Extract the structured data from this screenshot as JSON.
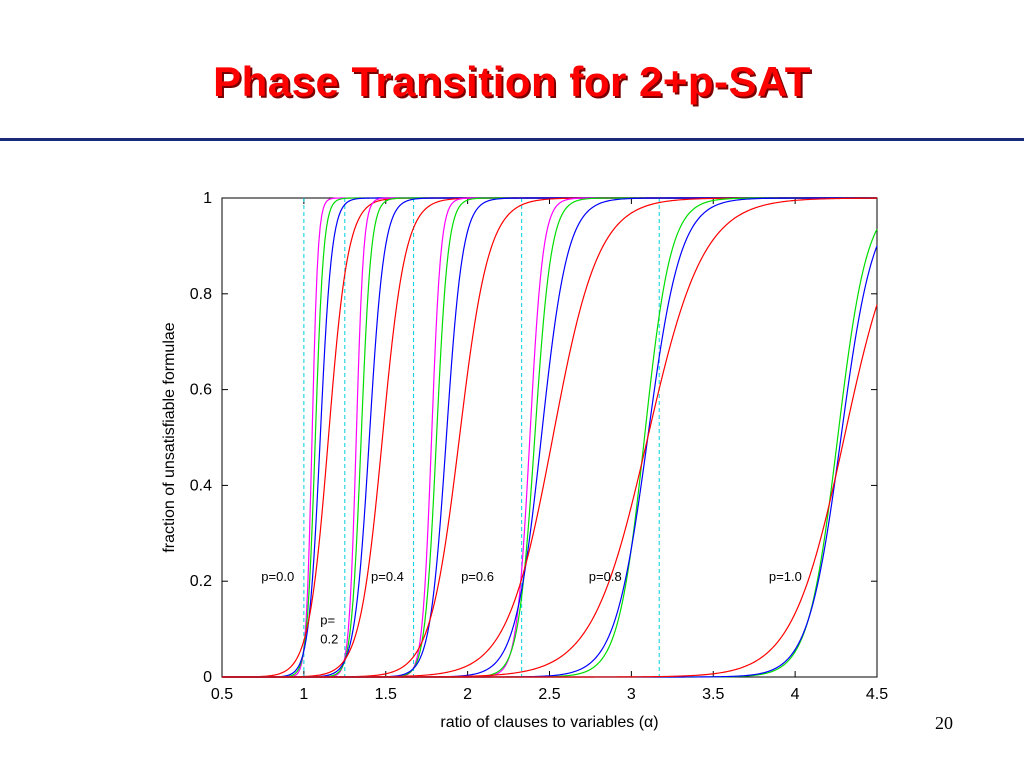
{
  "slide": {
    "title": "Phase Transition for 2+p-SAT",
    "page_number": "20"
  },
  "chart_data": {
    "type": "line",
    "title": "",
    "xlabel": "ratio of clauses to variables (α)",
    "ylabel": "fraction of unsatisfiable formulae",
    "xlim": [
      0.5,
      4.5
    ],
    "ylim": [
      0,
      1
    ],
    "x_ticks": [
      "0.5",
      "1",
      "1.5",
      "2",
      "2.5",
      "3",
      "3.5",
      "4",
      "4.5"
    ],
    "y_ticks": [
      "0",
      "0.2",
      "0.4",
      "0.6",
      "0.8",
      "1"
    ],
    "thresholds_dashed_cyan": [
      1.0,
      1.25,
      1.67,
      2.33,
      3.17
    ],
    "series_colors": {
      "magenta": "#ff00ff",
      "green": "#00dd00",
      "blue": "#0000ff",
      "red": "#ff0000",
      "cyan": "#00d0e0"
    },
    "groups": [
      {
        "label": "p=0.0",
        "curves": [
          {
            "color": "magenta",
            "mid": 1.05,
            "width": 0.018
          },
          {
            "color": "green",
            "mid": 1.07,
            "width": 0.025
          },
          {
            "color": "blue",
            "mid": 1.1,
            "width": 0.035
          },
          {
            "color": "red",
            "mid": 1.15,
            "width": 0.06
          }
        ]
      },
      {
        "label": "p=0.2",
        "curves": [
          {
            "color": "magenta",
            "mid": 1.32,
            "width": 0.022
          },
          {
            "color": "green",
            "mid": 1.35,
            "width": 0.03
          },
          {
            "color": "blue",
            "mid": 1.4,
            "width": 0.045
          },
          {
            "color": "red",
            "mid": 1.48,
            "width": 0.07
          }
        ]
      },
      {
        "label": "p=0.4",
        "curves": [
          {
            "color": "magenta",
            "mid": 1.78,
            "width": 0.028
          },
          {
            "color": "green",
            "mid": 1.81,
            "width": 0.035
          },
          {
            "color": "blue",
            "mid": 1.87,
            "width": 0.05
          },
          {
            "color": "red",
            "mid": 1.95,
            "width": 0.09
          }
        ]
      },
      {
        "label": "p=0.6",
        "curves": [
          {
            "color": "magenta",
            "mid": 2.38,
            "width": 0.04
          },
          {
            "color": "green",
            "mid": 2.41,
            "width": 0.05
          },
          {
            "color": "blue",
            "mid": 2.45,
            "width": 0.08
          },
          {
            "color": "red",
            "mid": 2.52,
            "width": 0.14
          }
        ]
      },
      {
        "label": "p=0.8",
        "curves": [
          {
            "color": "green",
            "mid": 3.08,
            "width": 0.08
          },
          {
            "color": "blue",
            "mid": 3.1,
            "width": 0.1
          },
          {
            "color": "red",
            "mid": 3.1,
            "width": 0.17
          }
        ]
      },
      {
        "label": "p=1.0",
        "curves": [
          {
            "color": "green",
            "mid": 4.26,
            "width": 0.09
          },
          {
            "color": "blue",
            "mid": 4.28,
            "width": 0.1
          },
          {
            "color": "red",
            "mid": 4.3,
            "width": 0.16
          }
        ]
      }
    ],
    "annotations": [
      {
        "text": "p=0.0",
        "x": 0.74,
        "y": 0.2
      },
      {
        "text": "p=",
        "x": 1.1,
        "y": 0.11
      },
      {
        "text": "0.2",
        "x": 1.1,
        "y": 0.07
      },
      {
        "text": "p=0.4",
        "x": 1.41,
        "y": 0.2
      },
      {
        "text": "p=0.6",
        "x": 1.96,
        "y": 0.2
      },
      {
        "text": "p=0.8",
        "x": 2.74,
        "y": 0.2
      },
      {
        "text": "p=1.0",
        "x": 3.84,
        "y": 0.2
      }
    ],
    "grid": false,
    "legend": "none"
  }
}
